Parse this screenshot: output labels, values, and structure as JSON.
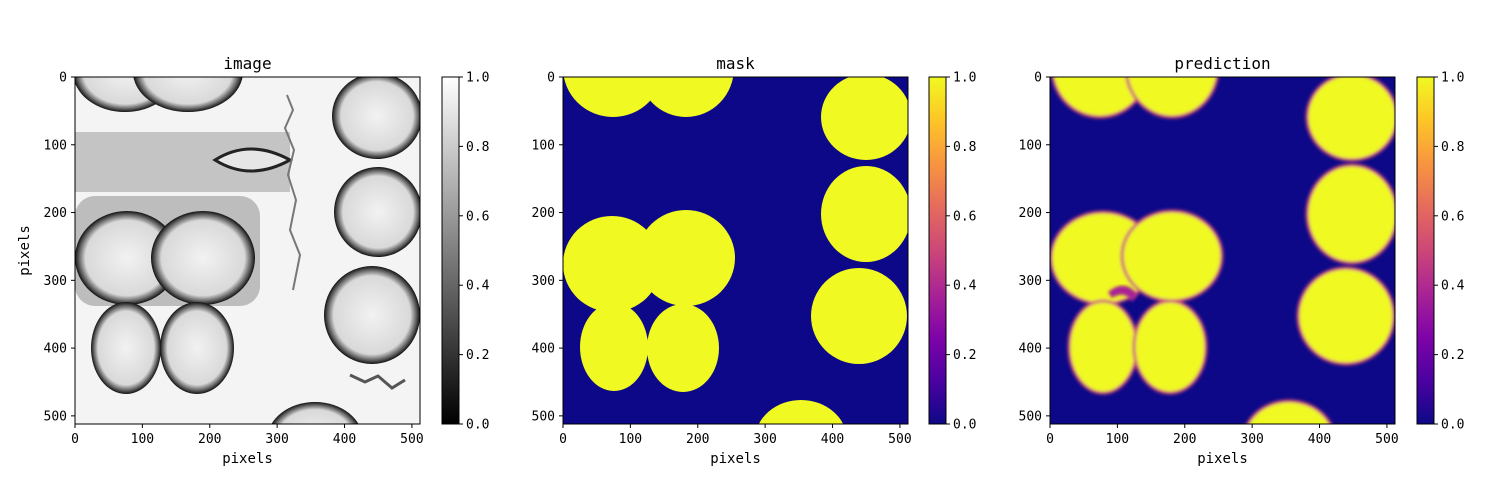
{
  "chart_data": [
    {
      "type": "heatmap",
      "title": "image",
      "xlabel": "pixels",
      "ylabel": "pixels",
      "xlim": [
        0,
        512
      ],
      "ylim": [
        512,
        0
      ],
      "xticks": [
        "0",
        "100",
        "200",
        "300",
        "400",
        "500"
      ],
      "yticks": [
        "0",
        "100",
        "200",
        "300",
        "400",
        "500"
      ],
      "colormap": "gray",
      "colorbar": {
        "range": [
          0.0,
          1.0
        ],
        "ticks": [
          "0.0",
          "0.2",
          "0.4",
          "0.6",
          "0.8",
          "1.0"
        ]
      }
    },
    {
      "type": "heatmap",
      "title": "mask",
      "xlabel": "pixels",
      "ylabel": "",
      "xlim": [
        0,
        512
      ],
      "ylim": [
        512,
        0
      ],
      "xticks": [
        "0",
        "100",
        "200",
        "300",
        "400",
        "500"
      ],
      "yticks": [
        "0",
        "100",
        "200",
        "300",
        "400",
        "500"
      ],
      "colormap": "plasma",
      "colorbar": {
        "range": [
          0.0,
          1.0
        ],
        "ticks": [
          "0.0",
          "0.2",
          "0.4",
          "0.6",
          "0.8",
          "1.0"
        ]
      }
    },
    {
      "type": "heatmap",
      "title": "prediction",
      "xlabel": "pixels",
      "ylabel": "",
      "xlim": [
        0,
        512
      ],
      "ylim": [
        512,
        0
      ],
      "xticks": [
        "0",
        "100",
        "200",
        "300",
        "400",
        "500"
      ],
      "yticks": [
        "0",
        "100",
        "200",
        "300",
        "400",
        "500"
      ],
      "colormap": "plasma",
      "colorbar": {
        "range": [
          0.0,
          1.0
        ],
        "ticks": [
          "0.0",
          "0.2",
          "0.4",
          "0.6",
          "0.8",
          "1.0"
        ]
      }
    }
  ],
  "colors": {
    "mask_background": "#0d0887",
    "mask_foreground": "#f0f921",
    "image_background": "#f4f4f4",
    "image_edge": "#1a1a1a"
  }
}
